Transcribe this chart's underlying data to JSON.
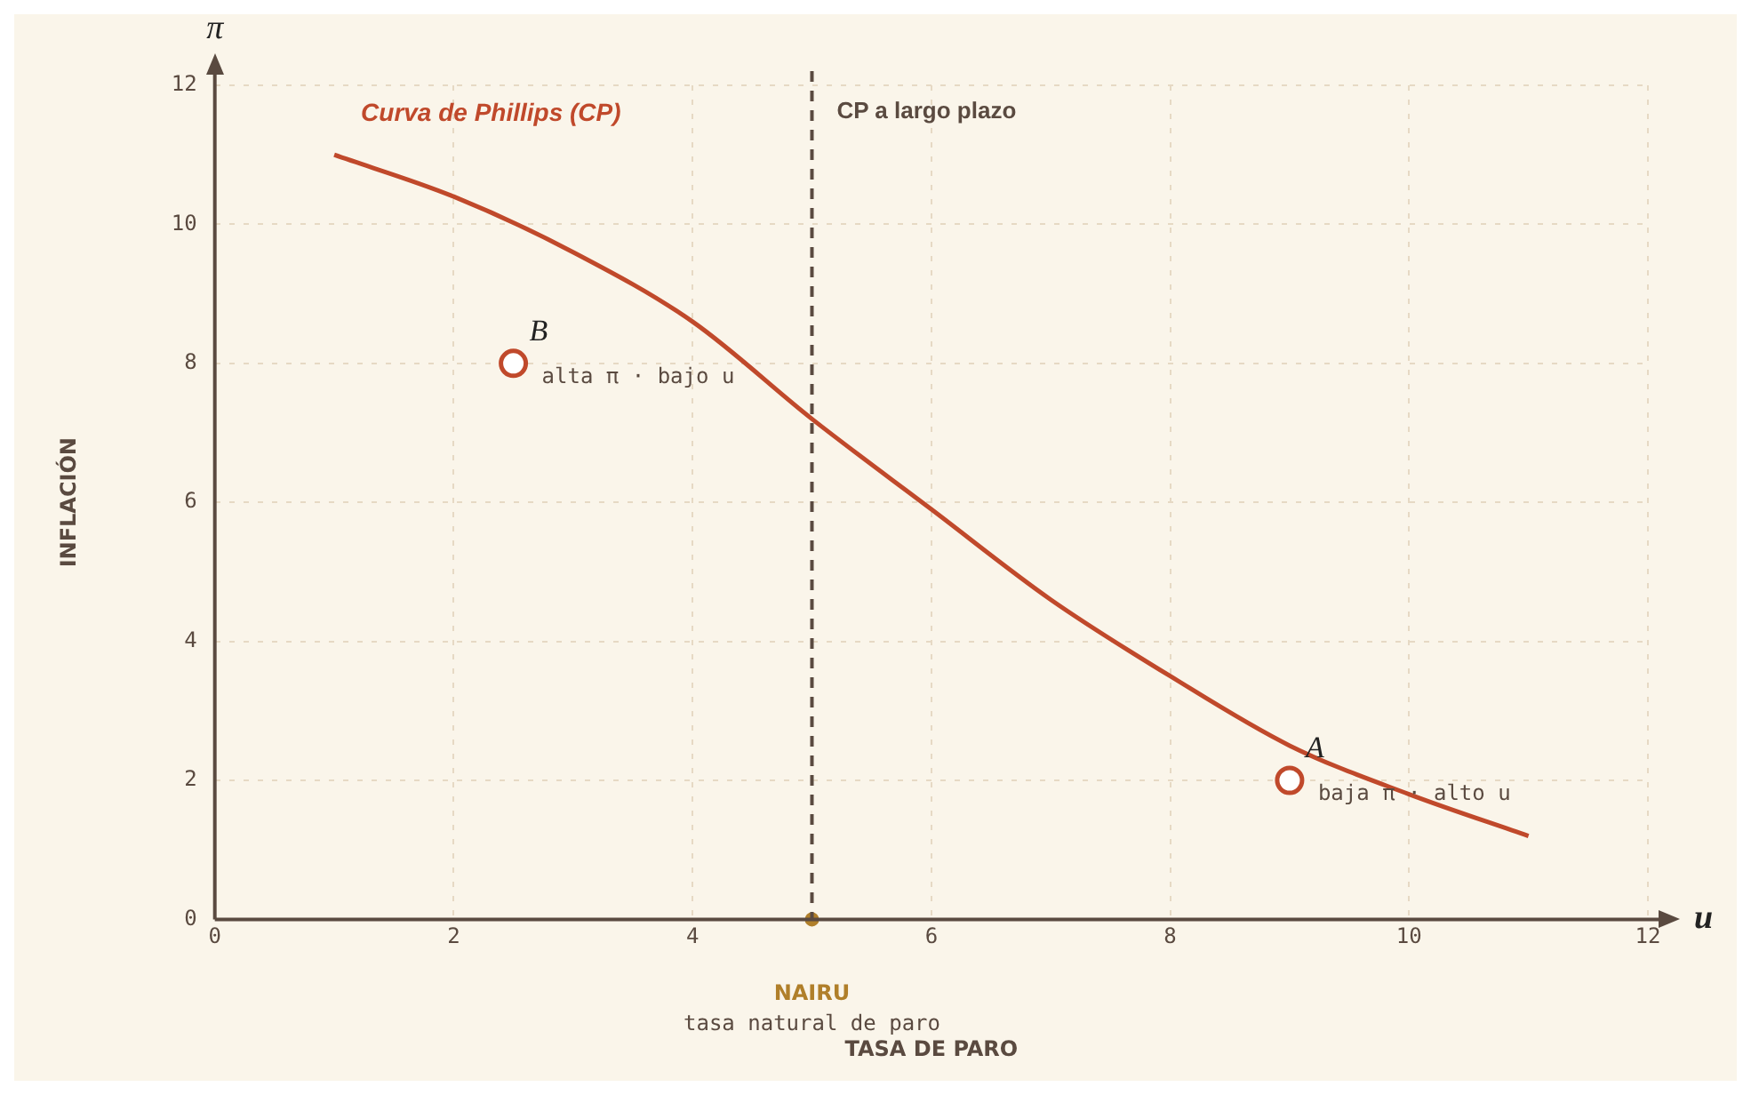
{
  "chart_data": {
    "type": "line",
    "xlabel": "TASA DE PARO",
    "ylabel": "INFLACIÓN",
    "xlim": [
      0,
      12
    ],
    "xticks": [
      0,
      2,
      4,
      6,
      8,
      10,
      12
    ],
    "ylim": [
      0,
      12
    ],
    "yticks": [
      0,
      2,
      4,
      6,
      8,
      10,
      12
    ],
    "grid": true,
    "legend": false,
    "marker": "none",
    "line_style": "solid",
    "series": [
      {
        "name": "Curva de Phillips (CP)",
        "color": "#c0492b",
        "x": [
          1,
          2,
          3,
          4,
          5,
          6,
          7,
          8,
          9,
          10,
          11
        ],
        "values": [
          11.0,
          10.4,
          9.6,
          8.6,
          7.2,
          5.9,
          4.6,
          3.5,
          2.5,
          1.8,
          1.2
        ]
      },
      {
        "type": "scatter",
        "name": "B",
        "color": "#c0492b",
        "marker": "circle",
        "x": [
          2.5
        ],
        "values": [
          8
        ]
      },
      {
        "type": "scatter",
        "name": "A",
        "color": "#c0492b",
        "marker": "circle",
        "x": [
          9
        ],
        "values": [
          2
        ]
      },
      {
        "type": "scatter",
        "color": "#b07f2a",
        "marker": "circle",
        "x": [
          5
        ],
        "values": [
          0
        ]
      }
    ],
    "ref_lines": [
      {
        "axis": "x",
        "value": 5,
        "label": "CP a largo plazo",
        "color": "#5a4a40",
        "line_style": "dashed"
      }
    ],
    "annotations": [
      "π",
      "u",
      "NAIRU",
      "tasa natural de paro",
      {
        "text": "alta π · bajo u",
        "x": 2.5,
        "y": 8
      },
      {
        "text": "baja π · alto u",
        "x": 9,
        "y": 2
      }
    ]
  }
}
